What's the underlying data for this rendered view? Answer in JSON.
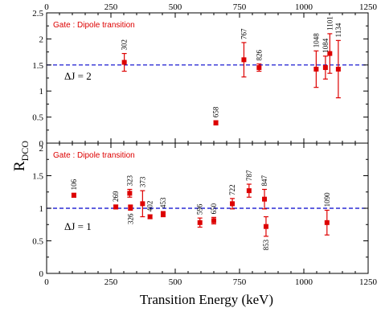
{
  "chart_data": [
    {
      "type": "scatter",
      "panel": "top",
      "annotation": "Gate : Dipole transition",
      "reference_line": {
        "y": 1.5,
        "label": "ΔJ = 2",
        "color": "#0000cc",
        "style": "dashed"
      },
      "xlim": [
        0,
        1250
      ],
      "ylim": [
        0,
        2.5
      ],
      "x_ticks": [
        "0",
        "250",
        "500",
        "750",
        "1000",
        "1250"
      ],
      "y_ticks": [
        "0",
        "0.5",
        "1",
        "1.5",
        "2",
        "2.5"
      ],
      "color": "#dd0000",
      "points": [
        {
          "x": 302,
          "y": 1.55,
          "yerr": 0.17,
          "label": "302"
        },
        {
          "x": 658,
          "y": 0.39,
          "yerr": 0.04,
          "label": "658"
        },
        {
          "x": 767,
          "y": 1.6,
          "yerr": 0.33,
          "label": "767"
        },
        {
          "x": 826,
          "y": 1.45,
          "yerr": 0.07,
          "label": "826"
        },
        {
          "x": 1048,
          "y": 1.42,
          "yerr": 0.35,
          "label": "1048"
        },
        {
          "x": 1084,
          "y": 1.45,
          "yerr": 0.22,
          "label": "1084"
        },
        {
          "x": 1101,
          "y": 1.72,
          "yerr": 0.38,
          "label": "1101"
        },
        {
          "x": 1134,
          "y": 1.42,
          "yerr": 0.55,
          "label": "1134"
        }
      ]
    },
    {
      "type": "scatter",
      "panel": "bottom",
      "annotation": "Gate : Dipole transition",
      "reference_line": {
        "y": 1.0,
        "label": "ΔJ = 1",
        "color": "#0000cc",
        "style": "dashed"
      },
      "xlim": [
        0,
        1250
      ],
      "ylim": [
        0,
        2.0
      ],
      "x_ticks": [
        "0",
        "250",
        "500",
        "750",
        "1000",
        "1250"
      ],
      "y_ticks": [
        "0",
        "0.5",
        "1",
        "1.5",
        "2"
      ],
      "color": "#dd0000",
      "points": [
        {
          "x": 106,
          "y": 1.2,
          "yerr": 0.03,
          "label": "106"
        },
        {
          "x": 269,
          "y": 1.02,
          "yerr": 0.03,
          "label": "269"
        },
        {
          "x": 323,
          "y": 1.23,
          "yerr": 0.06,
          "label": "323"
        },
        {
          "x": 326,
          "y": 1.01,
          "yerr": 0.04,
          "label": "326"
        },
        {
          "x": 373,
          "y": 1.07,
          "yerr": 0.2,
          "label": "373"
        },
        {
          "x": 402,
          "y": 0.87,
          "yerr": 0.03,
          "label": "402"
        },
        {
          "x": 453,
          "y": 0.91,
          "yerr": 0.04,
          "label": "453"
        },
        {
          "x": 596,
          "y": 0.78,
          "yerr": 0.07,
          "label": "596"
        },
        {
          "x": 650,
          "y": 0.81,
          "yerr": 0.05,
          "label": "650"
        },
        {
          "x": 722,
          "y": 1.07,
          "yerr": 0.08,
          "label": "722"
        },
        {
          "x": 787,
          "y": 1.27,
          "yerr": 0.1,
          "label": "787"
        },
        {
          "x": 847,
          "y": 1.14,
          "yerr": 0.15,
          "label": "847"
        },
        {
          "x": 853,
          "y": 0.72,
          "yerr": 0.15,
          "label": "853"
        },
        {
          "x": 1090,
          "y": 0.78,
          "yerr": 0.19,
          "label": "1090"
        }
      ]
    }
  ],
  "axes": {
    "xlabel": "Transition Energy (keV)",
    "ylabel_main": "R",
    "ylabel_sub": "DCO"
  }
}
